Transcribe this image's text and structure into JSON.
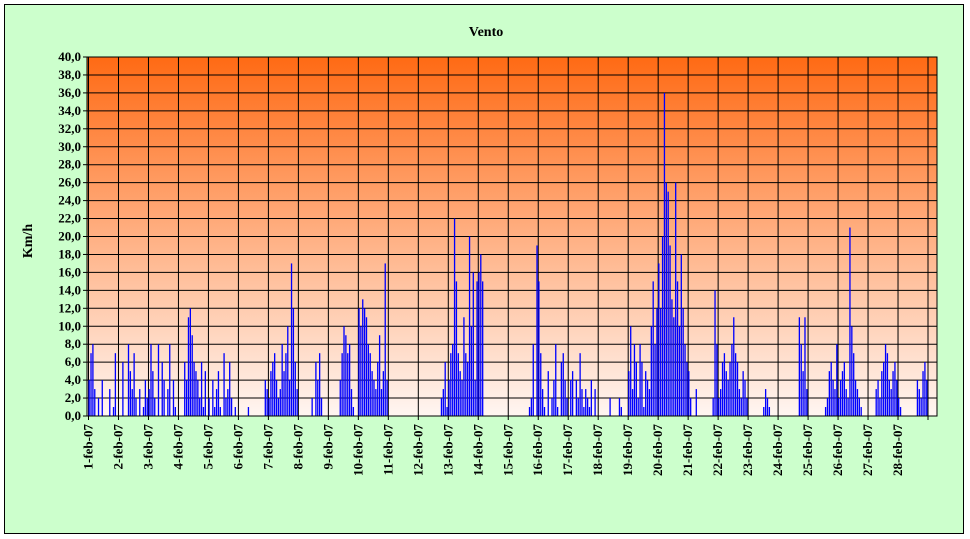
{
  "chart_data": {
    "type": "bar",
    "title": "Vento",
    "xlabel": "",
    "ylabel": "Km/h",
    "ylim": [
      0,
      40
    ],
    "y_ticks": [
      "0,0",
      "2,0",
      "4,0",
      "6,0",
      "8,0",
      "10,0",
      "12,0",
      "14,0",
      "16,0",
      "18,0",
      "20,0",
      "22,0",
      "24,0",
      "26,0",
      "28,0",
      "30,0",
      "32,0",
      "34,0",
      "36,0",
      "38,0",
      "40,0"
    ],
    "categories": [
      "1-feb-07",
      "2-feb-07",
      "3-feb-07",
      "4-feb-07",
      "5-feb-07",
      "6-feb-07",
      "7-feb-07",
      "8-feb-07",
      "9-feb-07",
      "10-feb-07",
      "11-feb-07",
      "12-feb-07",
      "13-feb-07",
      "14-feb-07",
      "15-feb-07",
      "16-feb-07",
      "17-feb-07",
      "18-feb-07",
      "19-feb-07",
      "20-feb-07",
      "21-feb-07",
      "22-feb-07",
      "23-feb-07",
      "24-feb-07",
      "25-feb-07",
      "26-feb-07",
      "27-feb-07",
      "28-feb-07"
    ],
    "series": [
      {
        "values": [
          [
            4,
            7,
            8,
            3,
            0,
            2,
            0,
            4,
            0,
            0,
            0,
            3,
            0,
            1,
            7,
            0
          ],
          [
            0,
            0,
            6,
            0,
            0,
            8,
            5,
            3,
            7,
            2,
            0,
            3,
            0,
            1,
            4,
            2
          ],
          [
            3,
            8,
            5,
            2,
            0,
            8,
            0,
            6,
            4,
            0,
            3,
            8,
            0,
            4,
            1,
            0
          ],
          [
            0,
            0,
            0,
            6,
            4,
            11,
            12,
            9,
            6,
            5,
            4,
            2,
            6,
            1,
            5,
            0
          ],
          [
            2,
            0,
            4,
            1,
            3,
            5,
            1,
            0,
            7,
            2,
            3,
            6,
            2,
            0,
            1,
            0
          ],
          [
            0,
            0,
            0,
            0,
            0,
            1,
            0,
            0,
            0,
            0,
            0,
            0,
            0,
            0,
            4,
            3
          ],
          [
            2,
            5,
            6,
            7,
            4,
            2,
            3,
            8,
            5,
            7,
            10,
            4,
            17,
            12,
            6,
            3
          ],
          [
            0,
            0,
            0,
            0,
            0,
            0,
            0,
            2,
            0,
            6,
            4,
            7,
            2,
            0,
            0,
            0
          ],
          [
            0,
            0,
            0,
            0,
            0,
            0,
            4,
            7,
            10,
            9,
            7,
            8,
            3,
            1,
            0,
            0
          ],
          [
            12,
            10,
            13,
            12,
            11,
            8,
            7,
            5,
            4,
            3,
            6,
            9,
            3,
            5,
            17,
            4
          ],
          [
            0,
            0,
            0,
            0,
            0,
            0,
            0,
            0,
            0,
            0,
            0,
            0,
            0,
            0,
            0,
            0
          ],
          [
            0,
            0,
            0,
            0,
            0,
            0,
            0,
            0,
            0,
            0,
            0,
            0,
            2,
            3,
            6,
            1
          ],
          [
            4,
            7,
            8,
            22,
            15,
            7,
            5,
            4,
            11,
            7,
            6,
            20,
            10,
            16,
            4,
            15
          ],
          [
            16,
            18,
            15,
            0,
            0,
            0,
            0,
            0,
            0,
            0,
            0,
            0,
            0,
            0,
            0,
            0
          ],
          [
            0,
            0,
            0,
            0,
            0,
            0,
            0,
            0,
            0,
            0,
            0,
            1,
            2,
            8,
            0,
            19
          ],
          [
            15,
            7,
            3,
            1,
            0,
            5,
            0,
            2,
            4,
            8,
            1,
            0,
            6,
            7,
            4,
            2
          ],
          [
            0,
            4,
            5,
            0,
            4,
            2,
            7,
            3,
            1,
            3,
            2,
            1,
            4,
            0,
            3,
            0
          ],
          [
            0,
            0,
            0,
            0,
            0,
            0,
            2,
            0,
            0,
            0,
            0,
            2,
            1,
            0,
            0,
            0
          ],
          [
            5,
            10,
            3,
            8,
            6,
            2,
            8,
            6,
            1,
            5,
            4,
            3,
            10,
            15,
            8,
            12
          ],
          [
            17,
            12,
            20,
            36,
            26,
            25,
            19,
            13,
            11,
            26,
            15,
            10,
            18,
            12,
            8,
            6
          ],
          [
            5,
            2,
            0,
            0,
            3,
            0,
            0,
            0,
            0,
            0,
            0,
            0,
            0,
            2,
            14,
            8
          ],
          [
            2,
            3,
            6,
            7,
            5,
            4,
            6,
            8,
            11,
            7,
            6,
            3,
            2,
            5,
            4,
            2
          ],
          [
            0,
            0,
            0,
            0,
            0,
            0,
            0,
            0,
            1,
            3,
            2,
            1,
            0,
            0,
            0,
            0
          ],
          [
            0,
            0,
            0,
            0,
            0,
            0,
            0,
            0,
            0,
            0,
            0,
            11,
            8,
            5,
            11,
            3
          ],
          [
            0,
            0,
            0,
            0,
            0,
            0,
            0,
            0,
            0,
            1,
            2,
            5,
            6,
            4,
            3,
            8
          ],
          [
            2,
            4,
            5,
            6,
            3,
            2,
            21,
            10,
            7,
            4,
            3,
            2,
            1,
            0,
            0,
            0
          ],
          [
            0,
            0,
            0,
            0,
            3,
            4,
            2,
            5,
            6,
            8,
            7,
            4,
            3,
            5,
            6,
            4
          ],
          [
            2,
            1,
            0,
            0,
            0,
            0,
            0,
            0,
            0,
            0,
            4,
            3,
            2,
            5,
            6,
            4
          ]
        ]
      }
    ],
    "grid": true,
    "legend": "none"
  },
  "colors": {
    "background": "#ccffcc",
    "bar": "#0000ff",
    "plot_top": "#ff6a14",
    "plot_bottom": "#fff6f2",
    "grid": "#000000"
  }
}
